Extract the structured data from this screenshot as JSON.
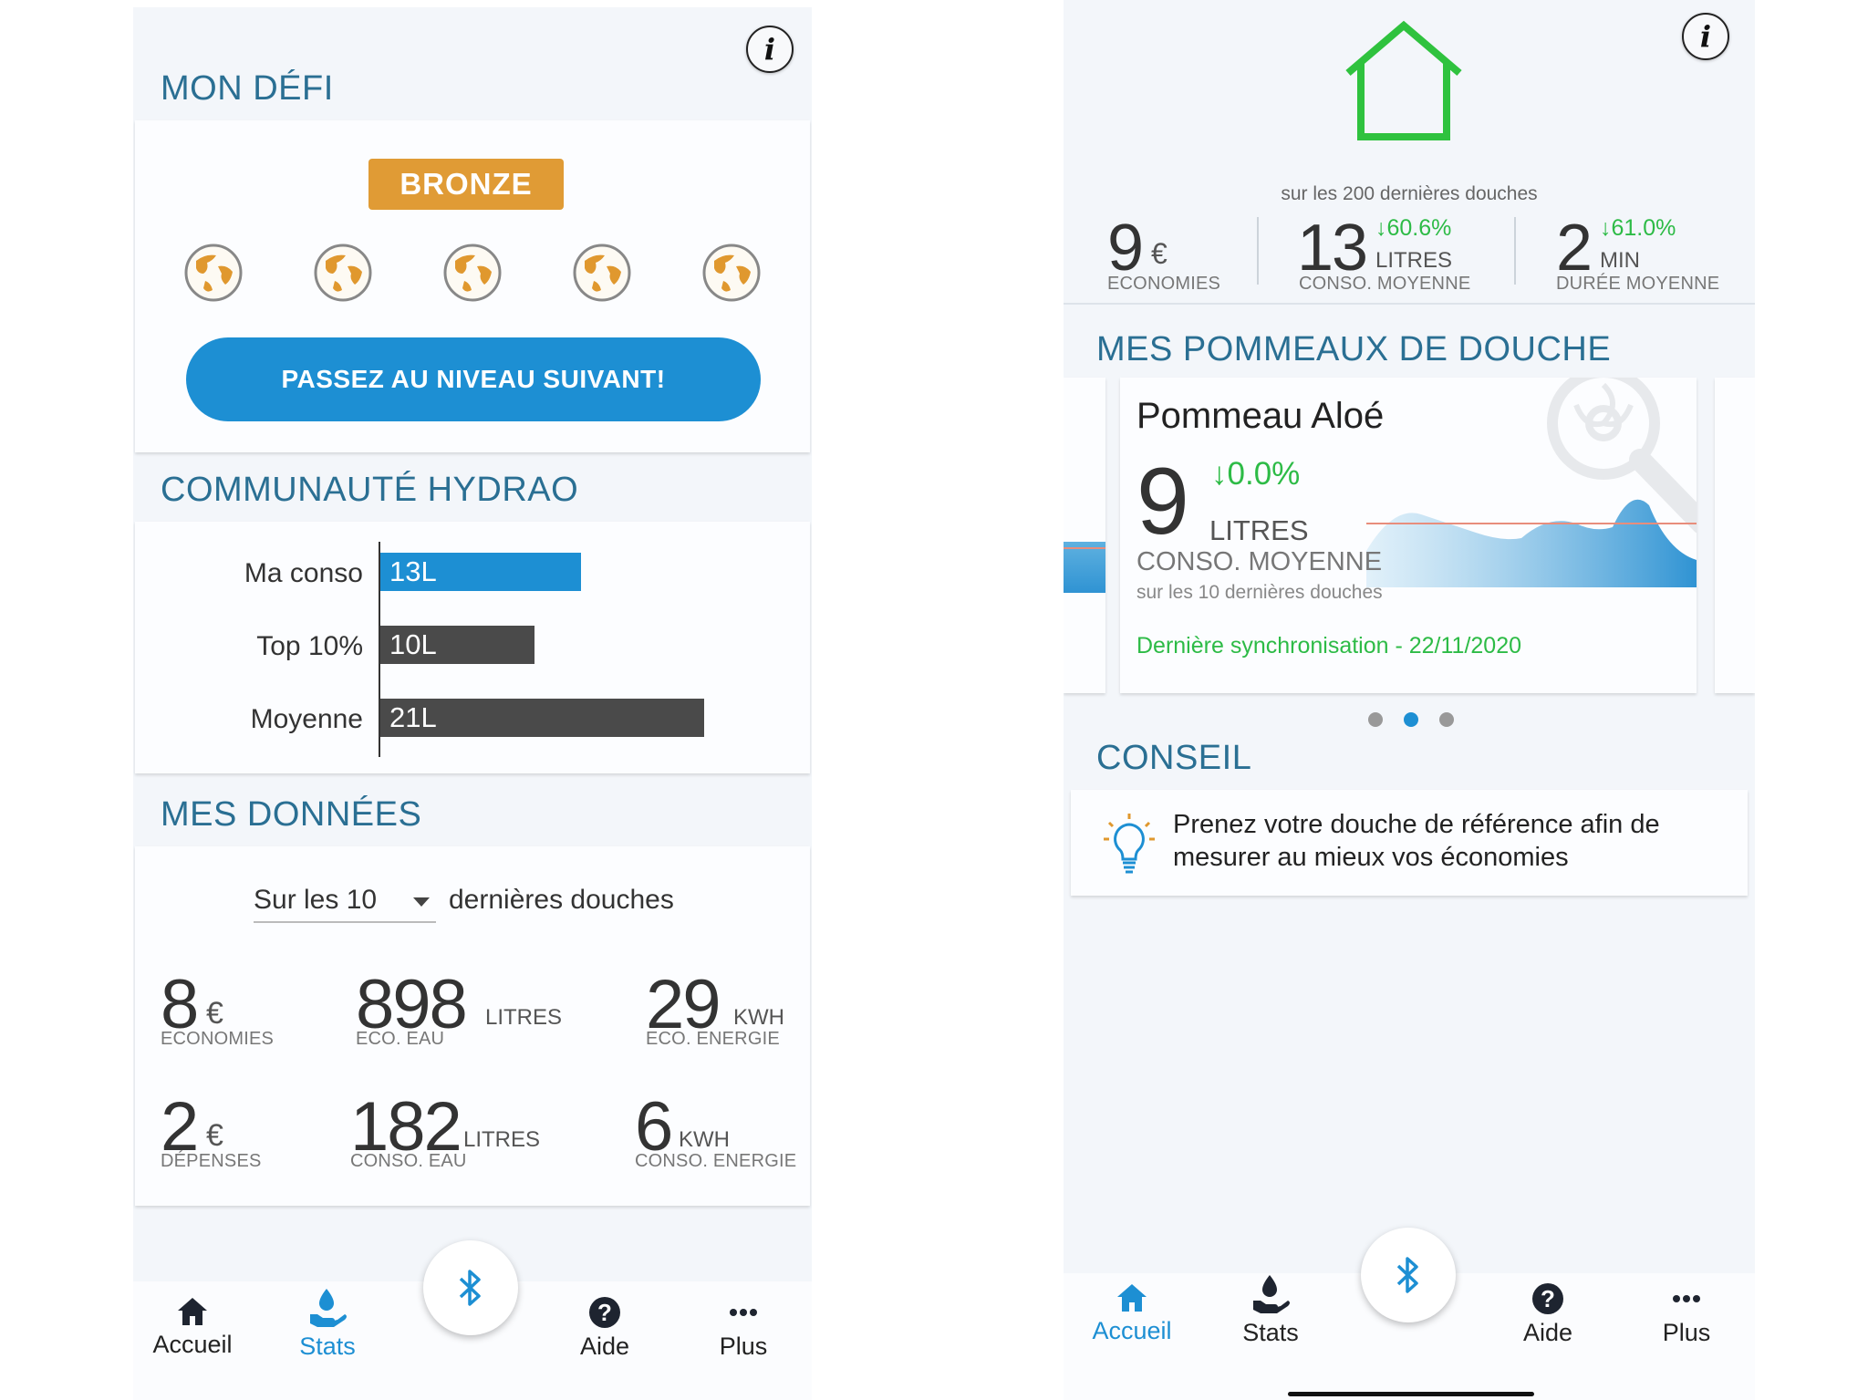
{
  "left_screen": {
    "info_label": "i",
    "defi": {
      "title": "MON DÉFI",
      "badge": "BRONZE",
      "globe_icons": [
        "globe-icon",
        "globe-icon",
        "globe-icon",
        "globe-icon",
        "globe-icon"
      ],
      "cta": "PASSEZ AU NIVEAU SUIVANT!"
    },
    "communaute": {
      "title": "COMMUNAUTÉ HYDRAO",
      "bars": [
        {
          "label": "Ma conso",
          "value_text": "13L",
          "value": 13,
          "color": "#1d8fd3"
        },
        {
          "label": "Top 10%",
          "value_text": "10L",
          "value": 10,
          "color": "#4a4a4a"
        },
        {
          "label": "Moyenne",
          "value_text": "21L",
          "value": 21,
          "color": "#4a4a4a"
        }
      ]
    },
    "donnees": {
      "title": "MES DONNÉES",
      "prefix": "Sur les 10",
      "suffix": "dernières douches",
      "stats": [
        {
          "value": "8",
          "unit": "€",
          "caption": "ECONOMIES"
        },
        {
          "value": "898",
          "unit": "LITRES",
          "caption": "ECO. EAU"
        },
        {
          "value": "29",
          "unit": "KWH",
          "caption": "ECO. ENERGIE"
        },
        {
          "value": "2",
          "unit": "€",
          "caption": "DÉPENSES"
        },
        {
          "value": "182",
          "unit": "LITRES",
          "caption": "CONSO. EAU"
        },
        {
          "value": "6",
          "unit": "KWH",
          "caption": "CONSO. ENERGIE"
        }
      ]
    },
    "tabs": [
      {
        "label": "Accueil",
        "icon": "home-icon",
        "active": false
      },
      {
        "label": "Stats",
        "icon": "stats-icon",
        "active": true
      },
      {
        "label": "Aide",
        "icon": "help-icon",
        "active": false
      },
      {
        "label": "Plus",
        "icon": "more-icon",
        "active": false
      }
    ]
  },
  "right_screen": {
    "info_label": "i",
    "house_color": "#2fc23e",
    "summary_caption": "sur les 200 dernières douches",
    "summary": [
      {
        "value": "9",
        "unit": "€",
        "caption": "ECONOMIES",
        "delta": ""
      },
      {
        "value": "13",
        "unit": "LITRES",
        "caption": "CONSO. MOYENNE",
        "delta": "60.6%"
      },
      {
        "value": "2",
        "unit": "MIN",
        "caption": "DURÉE MOYENNE",
        "delta": "61.0%"
      }
    ],
    "pommeaux": {
      "title": "MES POMMEAUX DE DOUCHE",
      "card_title": "Pommeau Aloé",
      "value": "9",
      "delta": "0.0%",
      "unit": "LITRES",
      "caption": "CONSO. MOYENNE",
      "sub_caption": "sur les 10 dernières douches",
      "sync": "Dernière synchronisation - 22/11/2020",
      "pager_active": 1,
      "pager_count": 3
    },
    "conseil": {
      "title": "CONSEIL",
      "text_line1": "Prenez votre douche de référence afin de",
      "text_line2": "mesurer au mieux vos économies"
    },
    "tabs": [
      {
        "label": "Accueil",
        "icon": "home-icon",
        "active": true
      },
      {
        "label": "Stats",
        "icon": "stats-icon",
        "active": false
      },
      {
        "label": "Aide",
        "icon": "help-icon",
        "active": false
      },
      {
        "label": "Plus",
        "icon": "more-icon",
        "active": false
      }
    ]
  },
  "colors": {
    "accent": "#1d8fd3",
    "section_title": "#2a6f93",
    "bronze": "#e09b35",
    "positive": "#2dbb46"
  }
}
